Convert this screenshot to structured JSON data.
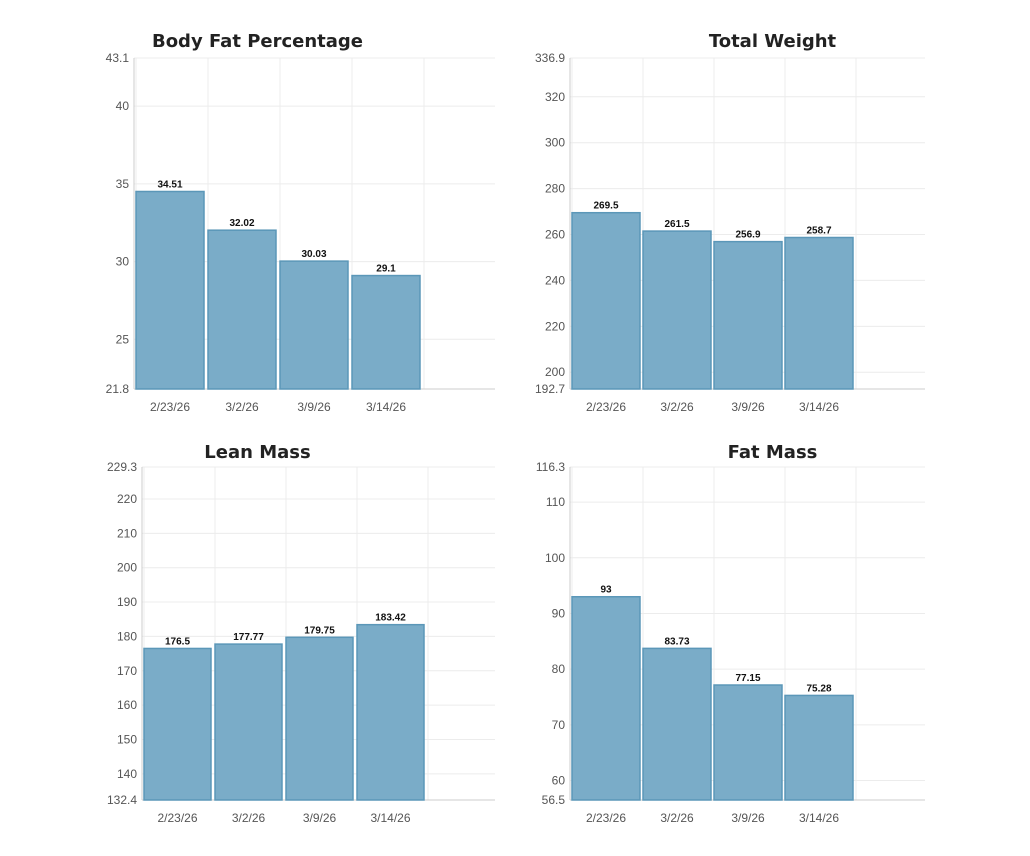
{
  "chart_data": [
    {
      "id": "body-fat",
      "type": "bar",
      "title": "Body Fat Percentage",
      "xlabel": "",
      "ylabel": "",
      "categories": [
        "2/23/26",
        "3/2/26",
        "3/9/26",
        "3/14/26"
      ],
      "values": [
        34.51,
        32.02,
        30.03,
        29.1
      ],
      "value_labels": [
        "34.51",
        "32.02",
        "30.03",
        "29.1"
      ],
      "ylim": [
        21.8,
        43.1
      ],
      "yticks": [
        25,
        30,
        35,
        40
      ],
      "ytick_labels": [
        "25",
        "30",
        "35",
        "40"
      ],
      "ymin_label": "21.8",
      "ymax_label": "43.1",
      "grid": true
    },
    {
      "id": "total-weight",
      "type": "bar",
      "title": "Total Weight",
      "xlabel": "",
      "ylabel": "",
      "categories": [
        "2/23/26",
        "3/2/26",
        "3/9/26",
        "3/14/26"
      ],
      "values": [
        269.5,
        261.5,
        256.9,
        258.7
      ],
      "value_labels": [
        "269.5",
        "261.5",
        "256.9",
        "258.7"
      ],
      "ylim": [
        192.7,
        336.9
      ],
      "yticks": [
        200,
        220,
        240,
        260,
        280,
        300,
        320
      ],
      "ytick_labels": [
        "200",
        "220",
        "240",
        "260",
        "280",
        "300",
        "320"
      ],
      "ymin_label": "192.7",
      "ymax_label": "336.9",
      "grid": true
    },
    {
      "id": "lean-mass",
      "type": "bar",
      "title": "Lean Mass",
      "xlabel": "",
      "ylabel": "",
      "categories": [
        "2/23/26",
        "3/2/26",
        "3/9/26",
        "3/14/26"
      ],
      "values": [
        176.5,
        177.77,
        179.75,
        183.42
      ],
      "value_labels": [
        "176.5",
        "177.77",
        "179.75",
        "183.42"
      ],
      "ylim": [
        132.4,
        229.3
      ],
      "yticks": [
        140,
        150,
        160,
        170,
        180,
        190,
        200,
        210,
        220
      ],
      "ytick_labels": [
        "140",
        "150",
        "160",
        "170",
        "180",
        "190",
        "200",
        "210",
        "220"
      ],
      "ymin_label": "132.4",
      "ymax_label": "229.3",
      "grid": true
    },
    {
      "id": "fat-mass",
      "type": "bar",
      "title": "Fat Mass",
      "xlabel": "",
      "ylabel": "",
      "categories": [
        "2/23/26",
        "3/2/26",
        "3/9/26",
        "3/14/26"
      ],
      "values": [
        93,
        83.73,
        77.15,
        75.28
      ],
      "value_labels": [
        "93",
        "83.73",
        "77.15",
        "75.28"
      ],
      "ylim": [
        56.5,
        116.3
      ],
      "yticks": [
        60,
        70,
        80,
        90,
        100,
        110
      ],
      "ytick_labels": [
        "60",
        "70",
        "80",
        "90",
        "100",
        "110"
      ],
      "ymin_label": "56.5",
      "ymax_label": "116.3",
      "grid": true
    }
  ],
  "colors": {
    "bar_fill": "#7aacc8",
    "bar_stroke": "#5b97b8",
    "grid": "#ececec",
    "axis": "#cccccc",
    "tick_text": "#555555",
    "label_text": "#111111"
  }
}
